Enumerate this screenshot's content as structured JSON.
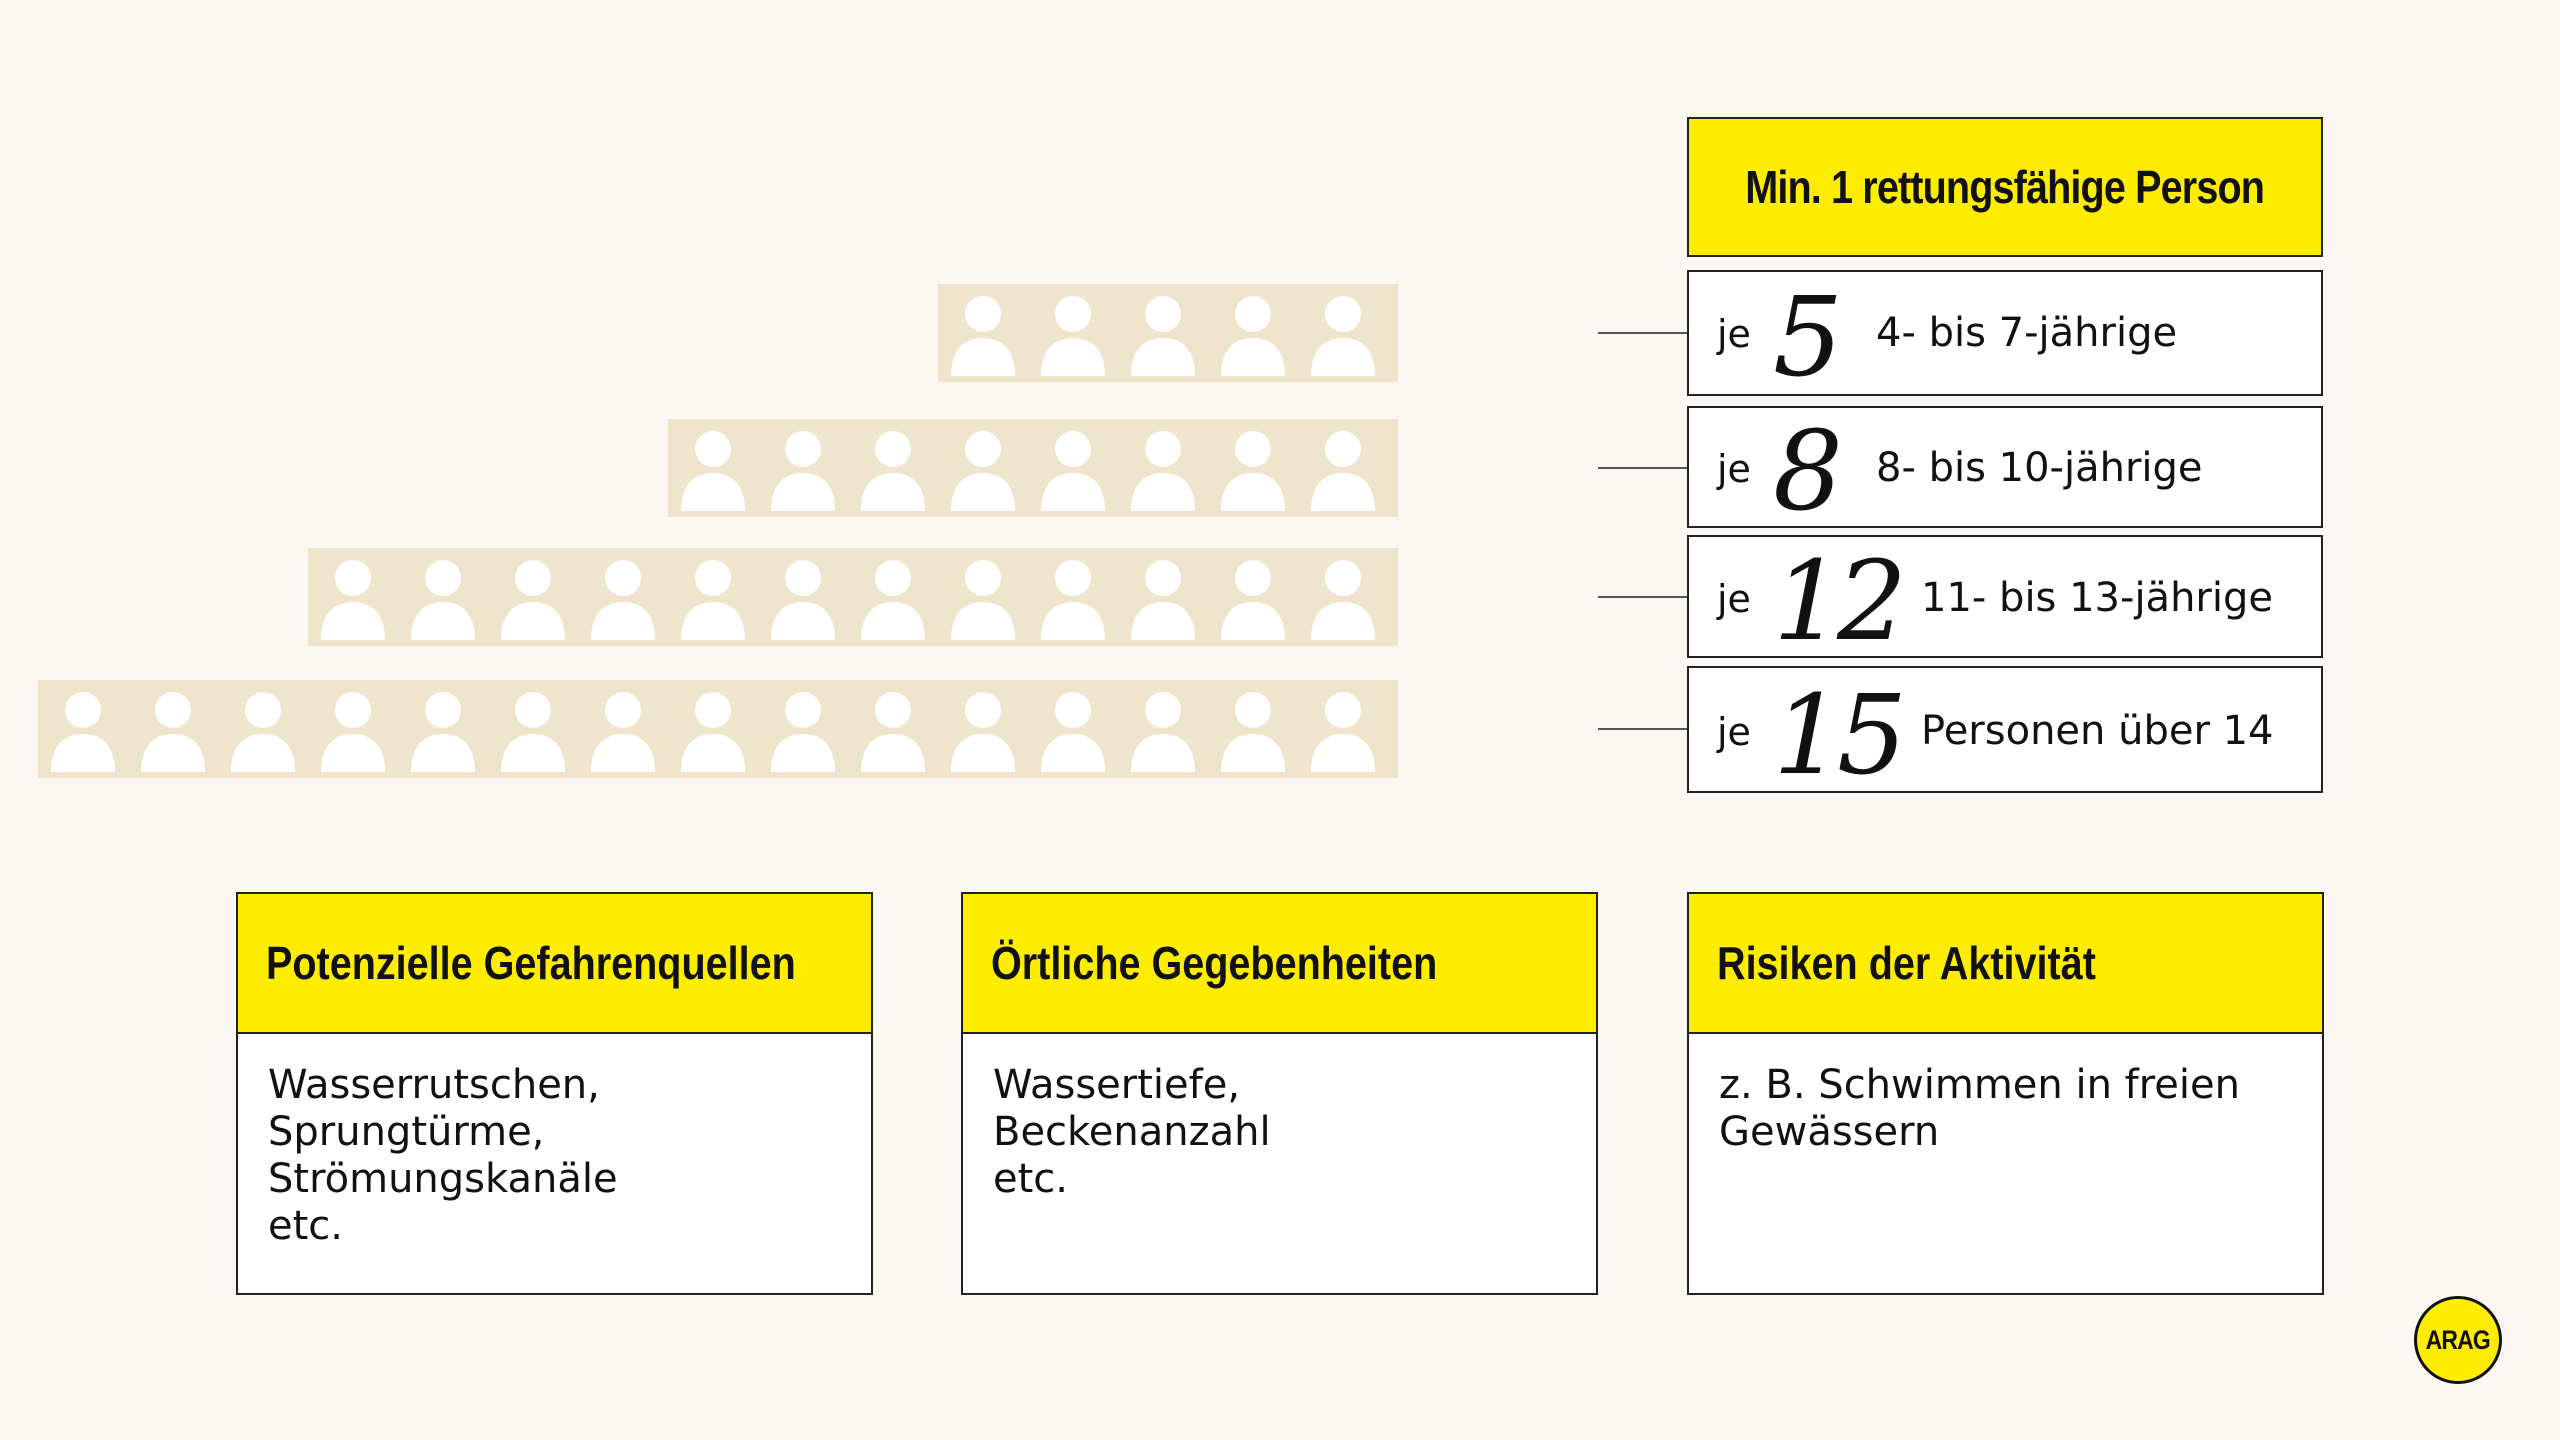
{
  "header": {
    "title": "Min. 1 rettungsfähige Person"
  },
  "ratios": [
    {
      "prefix": "je",
      "number": "5",
      "label": "4- bis 7-jährige",
      "people": 5
    },
    {
      "prefix": "je",
      "number": "8",
      "label": "8- bis 10-jährige",
      "people": 8
    },
    {
      "prefix": "je",
      "number": "12",
      "label": "11- bis 13-jährige",
      "people": 12
    },
    {
      "prefix": "je",
      "number": "15",
      "label": "Personen über 14",
      "people": 15
    }
  ],
  "cards": [
    {
      "title": "Potenzielle Gefahrenquellen",
      "body": "Wasserrutschen,\nSprungtürme,\nStrömungskanäle\netc."
    },
    {
      "title": "Örtliche Gegebenheiten",
      "body": "Wassertiefe,\nBeckenanzahl\netc."
    },
    {
      "title": "Risiken der Aktivität",
      "body": "z. B. Schwimmen in freien\nGewässern"
    }
  ],
  "logo": {
    "text": "ARAG"
  },
  "colors": {
    "accent": "#FFED00",
    "bar": "#EFE5CC",
    "background": "#FBF8F3"
  }
}
